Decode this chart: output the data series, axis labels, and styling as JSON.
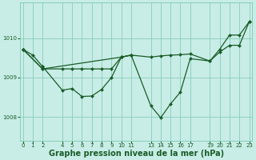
{
  "bg_color": "#c8ede6",
  "grid_color": "#88ccbb",
  "line_color": "#1a5c28",
  "xlabel": "Graphe pression niveau de la mer (hPa)",
  "ylim": [
    1007.4,
    1010.9
  ],
  "yticks": [
    1008,
    1009,
    1010
  ],
  "xlim": [
    -0.3,
    23.3
  ],
  "xtick_positions": [
    0,
    1,
    2,
    4,
    5,
    6,
    7,
    8,
    9,
    10,
    11,
    13,
    14,
    15,
    16,
    17,
    19,
    20,
    21,
    22,
    23
  ],
  "xtick_labels": [
    "0",
    "1",
    "2",
    "4",
    "5",
    "6",
    "7",
    "8",
    "9",
    "10",
    "11",
    "13",
    "14",
    "15",
    "16",
    "17",
    "19",
    "20",
    "21",
    "22",
    "23"
  ],
  "series": [
    {
      "x": [
        0,
        1,
        2
      ],
      "y": [
        1009.72,
        1009.57,
        1009.28
      ],
      "markers": true
    },
    {
      "x": [
        2,
        4,
        5,
        6,
        7,
        8,
        9,
        10,
        11
      ],
      "y": [
        1009.28,
        1008.68,
        1008.72,
        1008.52,
        1008.53,
        1008.7,
        1009.0,
        1009.52,
        1009.57
      ],
      "markers": true
    },
    {
      "x": [
        0,
        2,
        10,
        11,
        13,
        14,
        15,
        16,
        17,
        19,
        20,
        21,
        22,
        23
      ],
      "y": [
        1009.72,
        1009.22,
        1009.52,
        1009.57,
        1009.52,
        1009.55,
        1009.57,
        1009.58,
        1009.6,
        1009.42,
        1009.65,
        1009.82,
        1009.82,
        1010.42
      ],
      "markers": true
    },
    {
      "x": [
        0,
        2,
        4,
        5,
        6,
        7,
        8,
        9,
        10,
        11,
        13,
        14,
        15,
        16,
        17,
        19,
        20,
        21,
        22,
        23
      ],
      "y": [
        1009.72,
        1009.22,
        1009.22,
        1009.22,
        1009.22,
        1009.22,
        1009.22,
        1009.22,
        1009.52,
        1009.57,
        1008.28,
        1007.98,
        1008.33,
        1008.63,
        1009.48,
        1009.42,
        1009.72,
        1010.08,
        1010.08,
        1010.42
      ],
      "markers": true
    }
  ],
  "ms": 2.2,
  "lw": 0.9,
  "fontsize_tick": 5.0,
  "fontsize_xlabel": 7.0,
  "tick_color": "#1a5c28"
}
